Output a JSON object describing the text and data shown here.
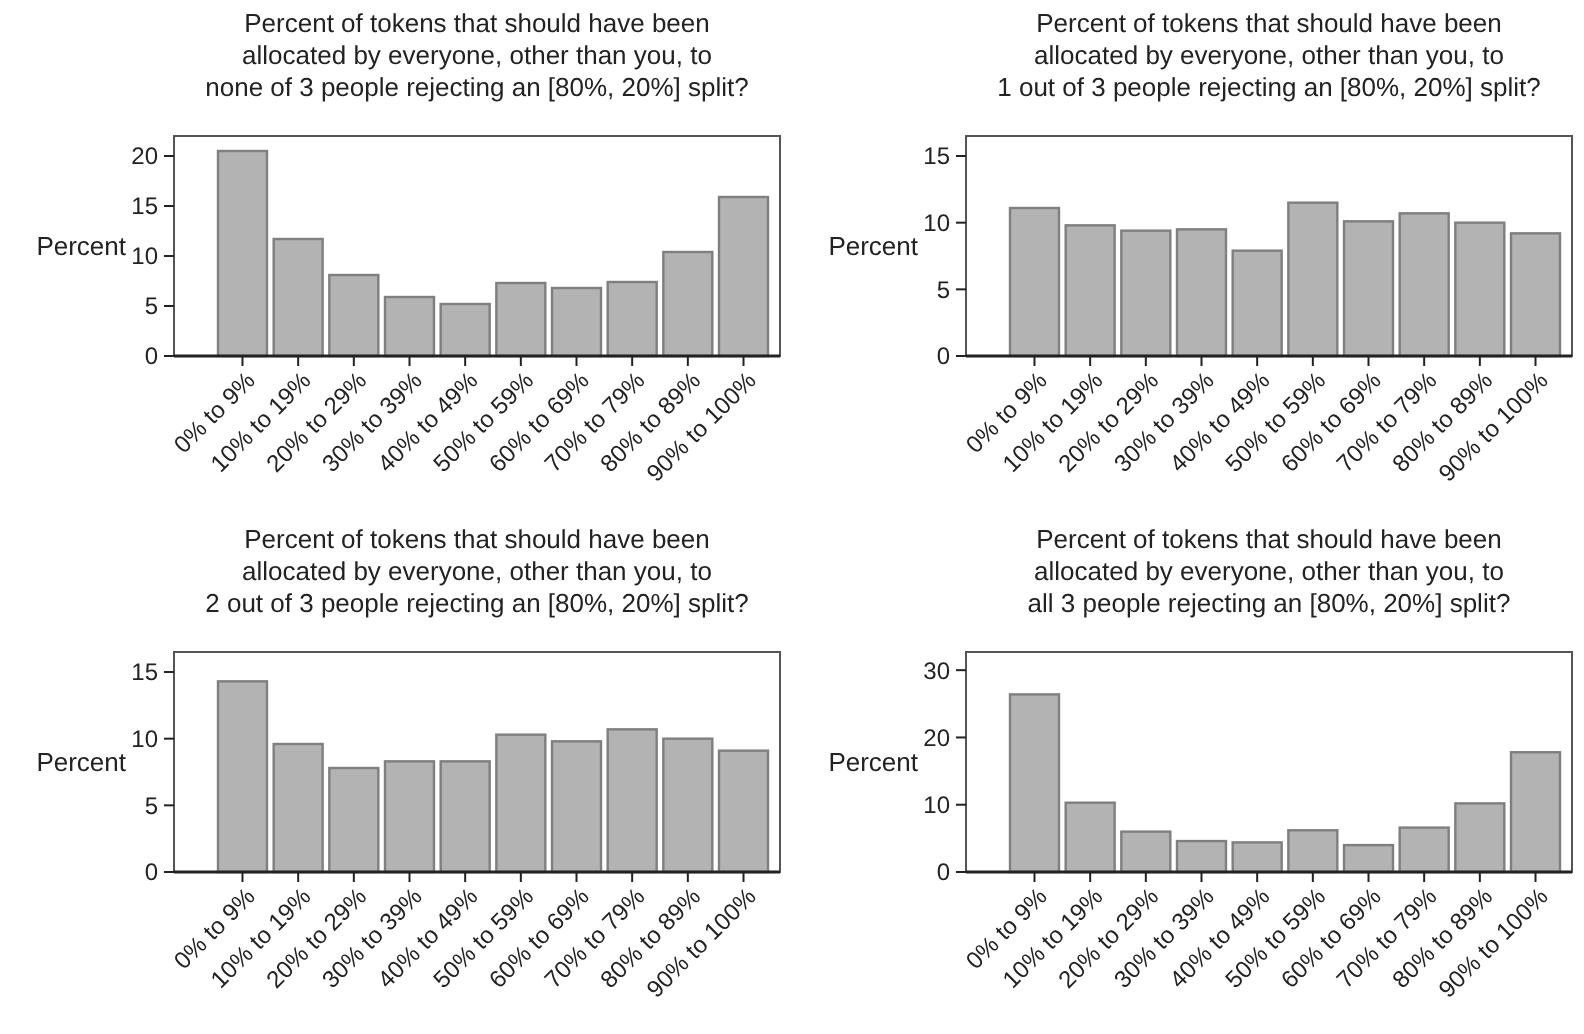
{
  "chart_data": [
    {
      "type": "bar",
      "title": "Percent of tokens that should have been\nallocated by everyone, other than you, to\nnone of 3 people rejecting an [80%, 20%] split?",
      "ylabel": "Percent",
      "categories": [
        "0% to 9%",
        "10% to 19%",
        "20% to 29%",
        "30% to 39%",
        "40% to 49%",
        "50% to 59%",
        "60% to 69%",
        "70% to 79%",
        "80% to 89%",
        "90% to 100%"
      ],
      "values": [
        20.5,
        11.7,
        8.1,
        5.9,
        5.2,
        7.3,
        6.8,
        7.4,
        10.4,
        15.9
      ],
      "color": "#b3b3b3",
      "ylim": [
        0,
        22
      ],
      "yticks": [
        0,
        5,
        10,
        15,
        20
      ],
      "grid": false
    },
    {
      "type": "bar",
      "title": "Percent of tokens that should have been\nallocated by everyone, other than you, to\n1 out of 3 people rejecting an [80%, 20%] split?",
      "ylabel": "Percent",
      "categories": [
        "0% to 9%",
        "10% to 19%",
        "20% to 29%",
        "30% to 39%",
        "40% to 49%",
        "50% to 59%",
        "60% to 69%",
        "70% to 79%",
        "80% to 89%",
        "90% to 100%"
      ],
      "values": [
        11.1,
        9.8,
        9.4,
        9.5,
        7.9,
        11.5,
        10.1,
        10.7,
        10.0,
        9.2
      ],
      "color": "#b3b3b3",
      "ylim": [
        0,
        16.5
      ],
      "yticks": [
        0,
        5,
        10,
        15
      ],
      "grid": false
    },
    {
      "type": "bar",
      "title": "Percent of tokens that should have been\nallocated by everyone, other than you, to\n2 out of 3 people rejecting an [80%, 20%] split?",
      "ylabel": "Percent",
      "categories": [
        "0% to 9%",
        "10% to 19%",
        "20% to 29%",
        "30% to 39%",
        "40% to 49%",
        "50% to 59%",
        "60% to 69%",
        "70% to 79%",
        "80% to 89%",
        "90% to 100%"
      ],
      "values": [
        14.3,
        9.6,
        7.8,
        8.3,
        8.3,
        10.3,
        9.8,
        10.7,
        10.0,
        9.1
      ],
      "color": "#b3b3b3",
      "ylim": [
        0,
        16.5
      ],
      "yticks": [
        0,
        5,
        10,
        15
      ],
      "grid": false
    },
    {
      "type": "bar",
      "title": "Percent of tokens that should have been\nallocated by everyone, other than you, to\nall 3 people rejecting an [80%, 20%] split?",
      "ylabel": "Percent",
      "categories": [
        "0% to 9%",
        "10% to 19%",
        "20% to 29%",
        "30% to 39%",
        "40% to 49%",
        "50% to 59%",
        "60% to 69%",
        "70% to 79%",
        "80% to 89%",
        "90% to 100%"
      ],
      "values": [
        26.4,
        10.3,
        6.0,
        4.6,
        4.4,
        6.2,
        4.0,
        6.6,
        10.2,
        17.8
      ],
      "color": "#b3b3b3",
      "ylim": [
        0,
        32.7
      ],
      "yticks": [
        0,
        10,
        20,
        30
      ],
      "grid": false
    }
  ]
}
